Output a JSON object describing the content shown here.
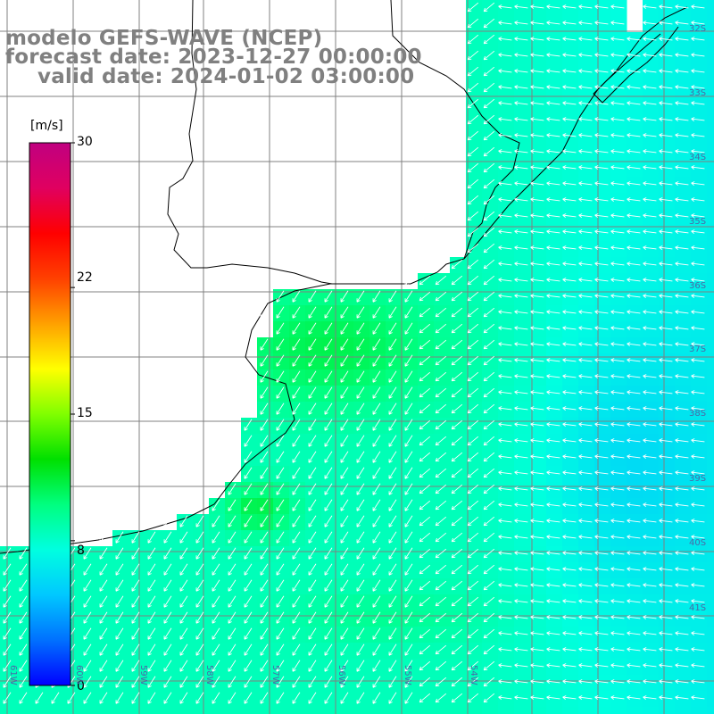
{
  "title": {
    "line1": "modelo GEFS-WAVE (NCEP)",
    "line2": "forecast date: 2023-12-27 00:00:00",
    "line3": "valid date: 2024-01-02 03:00:00"
  },
  "colorbar": {
    "unit": "[m/s]",
    "min": 0,
    "max": 30,
    "tick_labels": [
      "30",
      "22",
      "15",
      "8",
      "0"
    ],
    "tick_values": [
      30,
      22,
      15,
      8,
      0
    ],
    "colors": [
      "#0000ff",
      "#0070ff",
      "#00c8ff",
      "#00ffe0",
      "#00ff80",
      "#00e000",
      "#80ff00",
      "#ffff00",
      "#ffa000",
      "#ff4000",
      "#ff0000",
      "#e00060",
      "#c00080"
    ]
  },
  "axes": {
    "lat_labels": [
      "32S",
      "33S",
      "34S",
      "35S",
      "36S",
      "37S",
      "38S",
      "39S",
      "40S",
      "41S"
    ],
    "lon_labels": [
      "61W",
      "60W",
      "59W",
      "58W",
      "57W",
      "56W",
      "55W",
      "54W"
    ],
    "grid_color": "#808080"
  },
  "map": {
    "land_color": "#ffffff",
    "coast_color": "#000000",
    "vector_color": "#ffffff"
  }
}
